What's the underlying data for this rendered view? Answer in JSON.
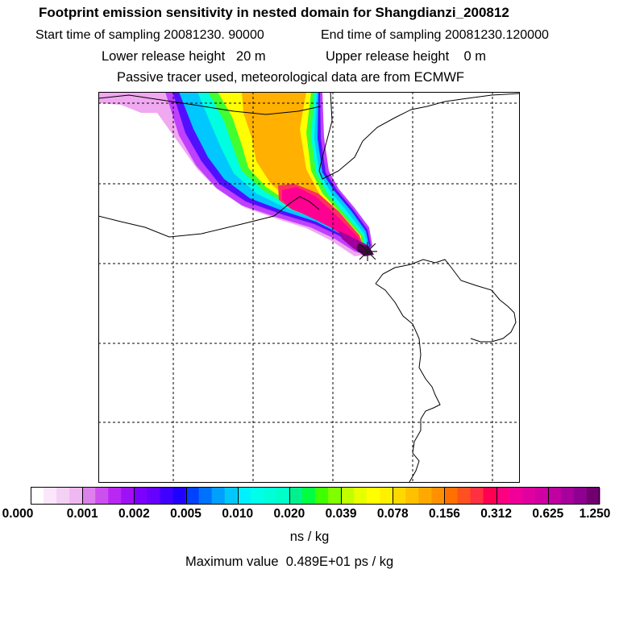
{
  "title": "Footprint emission sensitivity in nested domain for Shangdianzi_200812",
  "sampling": {
    "start_label": "Start time of sampling 20081230. 90000",
    "end_label": "End time of sampling 20081230.120000"
  },
  "release": {
    "lower_label": "Lower release height   20 m",
    "upper_label": "Upper release height    0 m"
  },
  "tracer_note": "Passive tracer used, meteorological data are from ECMWF",
  "map": {
    "station_marker": "x-marker",
    "plume_colors": [
      "#f0a0f0",
      "#c040ff",
      "#5000ff",
      "#00c0ff",
      "#00ffe0",
      "#30ff40",
      "#ffff00",
      "#ffb000",
      "#ff3060",
      "#ff0090",
      "#500040"
    ]
  },
  "colorbar": {
    "ticks": [
      "0.000",
      "0.001",
      "0.002",
      "0.005",
      "0.010",
      "0.020",
      "0.039",
      "0.078",
      "0.156",
      "0.312",
      "0.625",
      "1.250"
    ],
    "units": "ns / kg",
    "colors": [
      [
        "#ffffff",
        "#fbe6fb",
        "#f5d0f5",
        "#efb8f0"
      ],
      [
        "#dd80ec",
        "#cc50ee",
        "#b828f2",
        "#a010f6"
      ],
      [
        "#7a00ff",
        "#6600ff",
        "#4000ff",
        "#2000ff"
      ],
      [
        "#0040ff",
        "#0070ff",
        "#00a0ff",
        "#00c8ff"
      ],
      [
        "#00f0ff",
        "#00ffe8",
        "#00ffd8",
        "#00ffc8"
      ],
      [
        "#00f090",
        "#00ff40",
        "#40ff00",
        "#80ff00"
      ],
      [
        "#c0ff00",
        "#e8ff00",
        "#ffff00",
        "#fff000"
      ],
      [
        "#ffd800",
        "#ffc000",
        "#ffa800",
        "#ff9000"
      ],
      [
        "#ff7000",
        "#ff5020",
        "#ff3040",
        "#ff0050"
      ],
      [
        "#ff0080",
        "#f00098",
        "#e000a0",
        "#d000a0"
      ],
      [
        "#c000a0",
        "#a8009c",
        "#900090",
        "#700070"
      ],
      [
        "#500050"
      ]
    ]
  },
  "max_value_label": "Maximum value  0.489E+01 ps / kg"
}
